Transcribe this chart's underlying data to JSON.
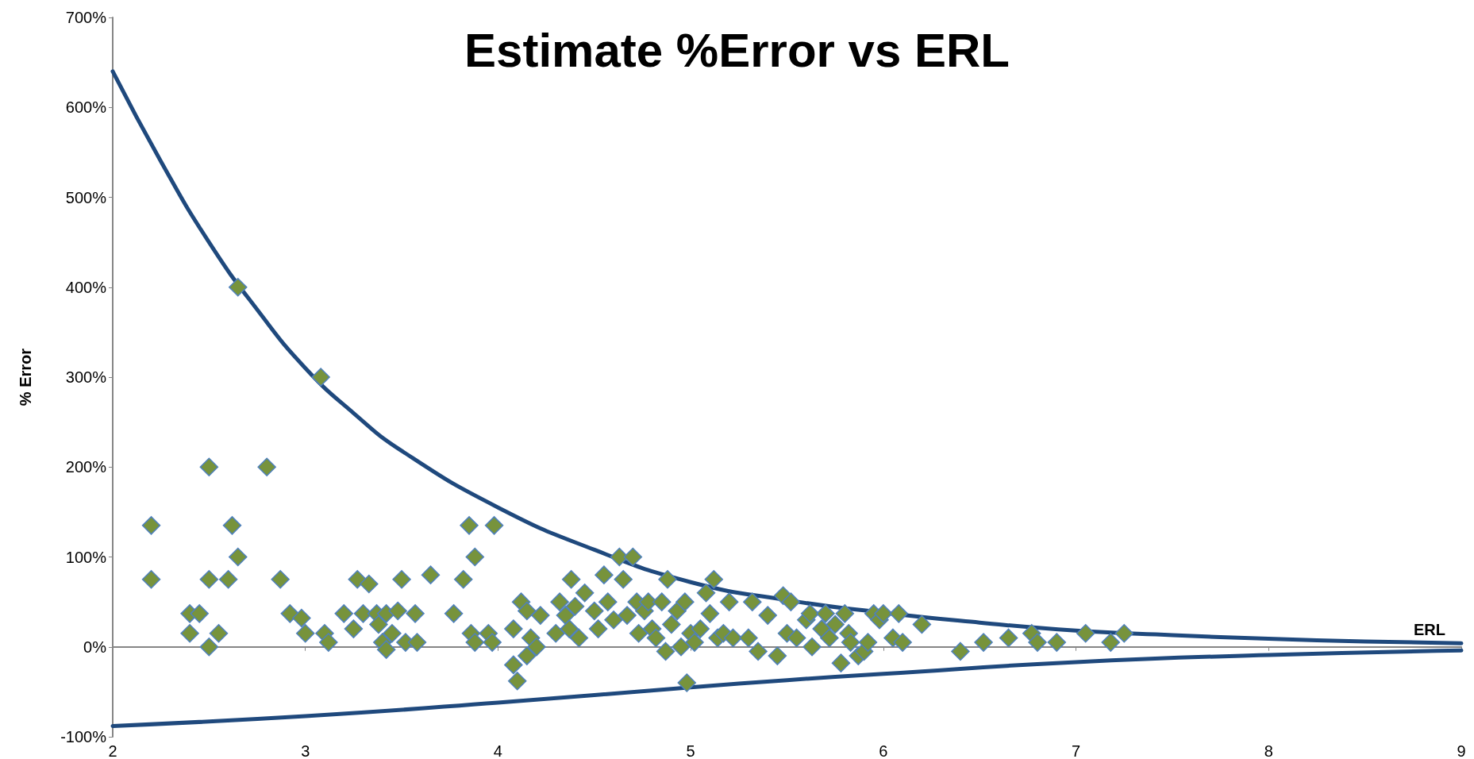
{
  "chart_data": {
    "type": "scatter",
    "title": "Estimate %Error vs ERL",
    "xlabel": "ERL",
    "ylabel": "% Error",
    "xlim": [
      2,
      9
    ],
    "xticks": [
      2,
      3,
      4,
      5,
      6,
      7,
      8,
      9
    ],
    "ylim": [
      -100,
      700
    ],
    "yticks": [
      {
        "value": -100,
        "label": "-100%"
      },
      {
        "value": 0,
        "label": "0%"
      },
      {
        "value": 100,
        "label": "100%"
      },
      {
        "value": 200,
        "label": "200%"
      },
      {
        "value": 300,
        "label": "300%"
      },
      {
        "value": 400,
        "label": "400%"
      },
      {
        "value": 500,
        "label": "500%"
      },
      {
        "value": 600,
        "label": "600%"
      },
      {
        "value": 700,
        "label": "700%"
      }
    ],
    "series": [
      {
        "marker": "diamond",
        "color": "#77933c",
        "x": [
          2.2,
          2.2,
          2.4,
          2.4,
          2.45,
          2.5,
          2.5,
          2.5,
          2.55,
          2.6,
          2.62,
          2.65,
          2.65,
          2.8,
          2.87,
          2.92,
          2.98,
          3.0,
          3.08,
          3.1,
          3.12,
          3.2,
          3.25,
          3.27,
          3.3,
          3.33,
          3.37,
          3.38,
          3.4,
          3.42,
          3.42,
          3.45,
          3.48,
          3.5,
          3.52,
          3.57,
          3.58,
          3.65,
          3.77,
          3.82,
          3.85,
          3.86,
          3.88,
          3.88,
          3.95,
          3.97,
          3.98,
          4.08,
          4.08,
          4.1,
          4.12,
          4.15,
          4.15,
          4.17,
          4.2,
          4.22,
          4.3,
          4.32,
          4.35,
          4.37,
          4.38,
          4.4,
          4.42,
          4.45,
          4.5,
          4.52,
          4.55,
          4.57,
          4.6,
          4.63,
          4.65,
          4.67,
          4.7,
          4.72,
          4.73,
          4.76,
          4.78,
          4.8,
          4.82,
          4.85,
          4.87,
          4.88,
          4.9,
          4.93,
          4.95,
          4.97,
          4.98,
          5.0,
          5.02,
          5.05,
          5.08,
          5.1,
          5.12,
          5.14,
          5.17,
          5.2,
          5.22,
          5.3,
          5.32,
          5.35,
          5.4,
          5.45,
          5.48,
          5.5,
          5.52,
          5.55,
          5.6,
          5.62,
          5.63,
          5.68,
          5.7,
          5.72,
          5.75,
          5.78,
          5.8,
          5.82,
          5.83,
          5.87,
          5.9,
          5.92,
          5.95,
          5.98,
          6.0,
          6.05,
          6.08,
          6.1,
          6.2,
          6.4,
          6.52,
          6.65,
          6.77,
          6.8,
          6.9,
          7.05,
          7.18,
          7.25
        ],
        "values": [
          135,
          75,
          37,
          15,
          37,
          200,
          75,
          0,
          15,
          75,
          135,
          100,
          400,
          200,
          75,
          37,
          32,
          15,
          300,
          15,
          5,
          37,
          20,
          75,
          37,
          70,
          37,
          25,
          5,
          -3,
          37,
          15,
          40,
          75,
          5,
          37,
          5,
          80,
          37,
          75,
          135,
          15,
          100,
          5,
          15,
          5,
          135,
          20,
          -20,
          -38,
          50,
          40,
          -10,
          10,
          0,
          35,
          15,
          50,
          35,
          20,
          75,
          45,
          10,
          60,
          40,
          20,
          80,
          50,
          30,
          100,
          75,
          35,
          100,
          50,
          15,
          40,
          50,
          20,
          10,
          50,
          -5,
          75,
          25,
          40,
          0,
          50,
          -40,
          15,
          5,
          20,
          60,
          37,
          75,
          10,
          15,
          50,
          10,
          10,
          50,
          -5,
          35,
          -10,
          57,
          15,
          50,
          10,
          30,
          37,
          0,
          20,
          37,
          10,
          25,
          -18,
          37,
          15,
          5,
          -10,
          -5,
          5,
          37,
          30,
          37,
          10,
          37,
          5,
          25,
          -5,
          5,
          10,
          15,
          5,
          5,
          15,
          5,
          15
        ]
      },
      {
        "type": "line",
        "marker": "none",
        "line_style": "solid",
        "color": "#1f497d",
        "x": [
          2,
          2.25,
          2.5,
          2.75,
          3,
          3.25,
          3.5,
          4,
          4.5,
          5,
          5.5,
          6,
          6.5,
          7,
          7.5,
          8,
          8.5,
          9
        ],
        "values": [
          640,
          540,
          450,
          375,
          310,
          260,
          218,
          155,
          108,
          72,
          52,
          38,
          27,
          18,
          13,
          9,
          6,
          4
        ]
      },
      {
        "type": "line",
        "marker": "none",
        "line_style": "solid",
        "color": "#1f497d",
        "x": [
          2,
          3,
          4,
          5,
          5.5,
          6,
          7,
          8,
          9
        ],
        "values": [
          -88,
          -77,
          -62,
          -45,
          -37,
          -30,
          -17,
          -9,
          -4
        ]
      }
    ]
  }
}
